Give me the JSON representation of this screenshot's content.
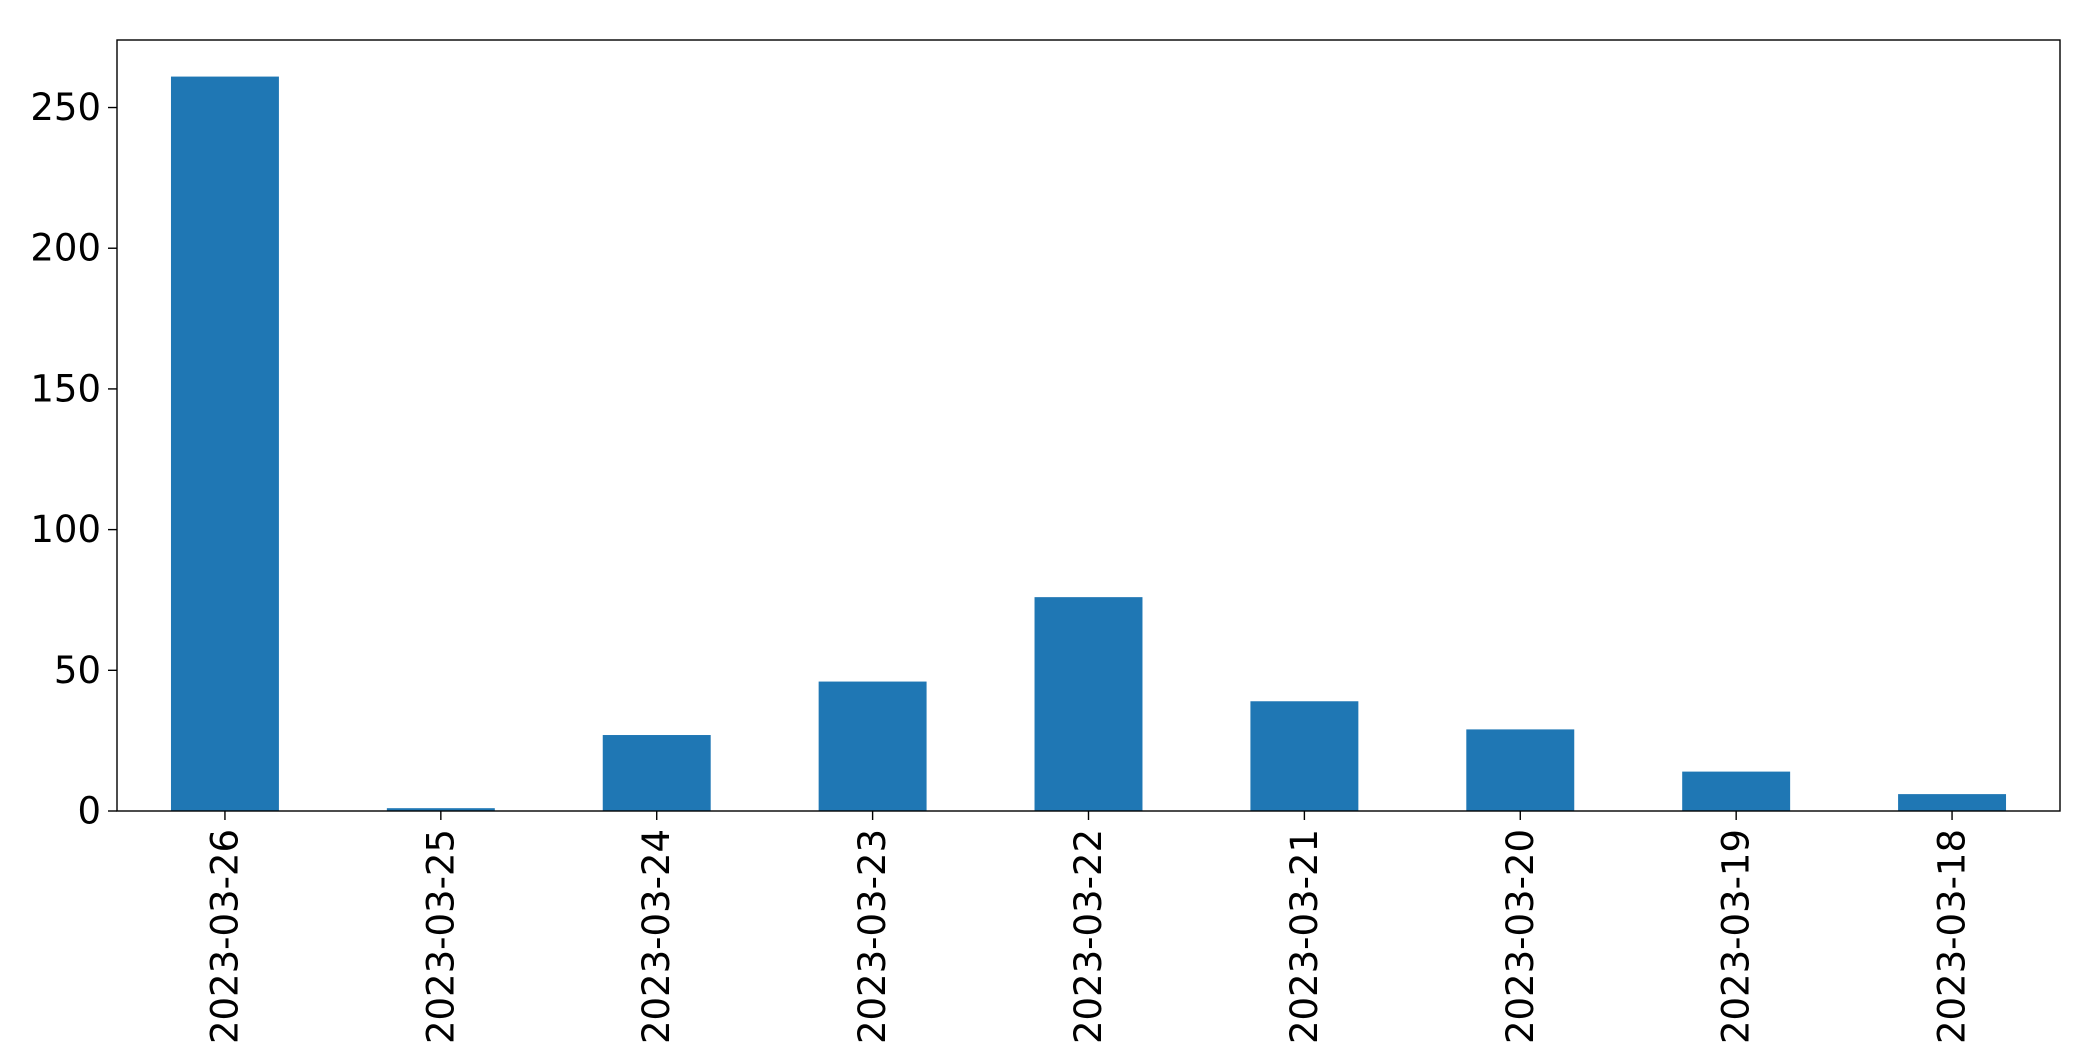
{
  "chart_data": {
    "type": "bar",
    "title": "",
    "xlabel": "",
    "ylabel": "",
    "categories": [
      "2023-03-26",
      "2023-03-25",
      "2023-03-24",
      "2023-03-23",
      "2023-03-22",
      "2023-03-21",
      "2023-03-20",
      "2023-03-19",
      "2023-03-18"
    ],
    "series": [
      {
        "values": [
          261,
          1,
          27,
          46,
          76,
          39,
          29,
          14,
          6
        ],
        "color": "#1f77b4"
      }
    ],
    "ylim": [
      0,
      274
    ],
    "yticks": [
      "0",
      "50",
      "100",
      "150",
      "200",
      "250"
    ],
    "grid": false,
    "legend": "none"
  }
}
